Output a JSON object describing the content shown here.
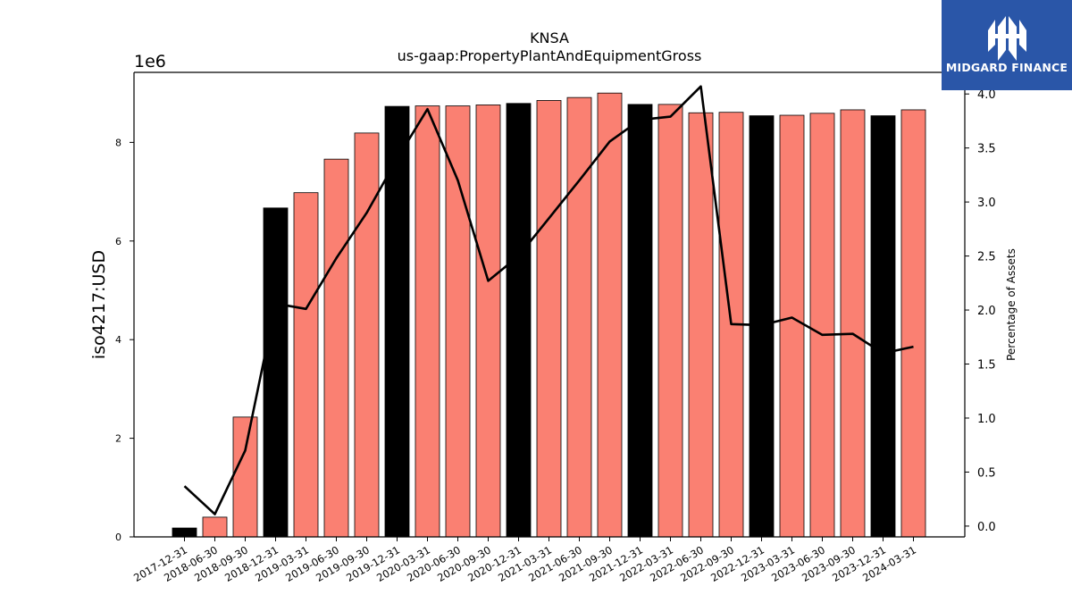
{
  "chart_data": {
    "type": "bar",
    "title": "KNSA",
    "subtitle": "us-gaap:PropertyPlantAndEquipmentGross",
    "ylabel": "iso4217:USD",
    "ylabel_right": "Percentage of Assets",
    "offset_text": "1e6",
    "ylim": [
      0,
      9420000
    ],
    "ylim_right": [
      -0.1,
      4.2
    ],
    "yticks": [
      "0",
      "2",
      "4",
      "6",
      "8"
    ],
    "yticks_right": [
      "0.0",
      "0.5",
      "1.0",
      "1.5",
      "2.0",
      "2.5",
      "3.0",
      "3.5",
      "4.0"
    ],
    "categories": [
      "2017-12-31",
      "2018-06-30",
      "2018-09-30",
      "2018-12-31",
      "2019-03-31",
      "2019-06-30",
      "2019-09-30",
      "2019-12-31",
      "2020-03-31",
      "2020-06-30",
      "2020-09-30",
      "2020-12-31",
      "2021-03-31",
      "2021-06-30",
      "2021-09-30",
      "2021-12-31",
      "2022-03-31",
      "2022-06-30",
      "2022-09-30",
      "2022-12-31",
      "2023-03-31",
      "2023-06-30",
      "2023-09-30",
      "2023-12-31",
      "2024-03-31"
    ],
    "series": [
      {
        "values": [
          180000,
          400000,
          2430000,
          6670000,
          6980000,
          7660000,
          8190000,
          8730000,
          8740000,
          8740000,
          8760000,
          8790000,
          8850000,
          8910000,
          9000000,
          8770000,
          8770000,
          8600000,
          8610000,
          8540000,
          8550000,
          8590000,
          8660000,
          8540000,
          8660000
        ],
        "colors": [
          "#000000",
          "#fa8072",
          "#fa8072",
          "#000000",
          "#fa8072",
          "#fa8072",
          "#fa8072",
          "#000000",
          "#fa8072",
          "#fa8072",
          "#fa8072",
          "#000000",
          "#fa8072",
          "#fa8072",
          "#fa8072",
          "#000000",
          "#fa8072",
          "#fa8072",
          "#fa8072",
          "#000000",
          "#fa8072",
          "#fa8072",
          "#fa8072",
          "#000000",
          "#fa8072"
        ]
      },
      {
        "axis": "right",
        "type": "line",
        "color": "#000000",
        "values": [
          0.37,
          0.11,
          0.7,
          2.06,
          2.01,
          2.48,
          2.9,
          3.4,
          3.86,
          3.2,
          2.27,
          2.5,
          2.85,
          3.2,
          3.56,
          3.76,
          3.79,
          4.07,
          1.87,
          1.86,
          1.93,
          1.77,
          1.78,
          1.6,
          1.66
        ]
      }
    ]
  },
  "logo": {
    "text": "MIDGARD FINANCE",
    "color": "#2a56a8"
  }
}
